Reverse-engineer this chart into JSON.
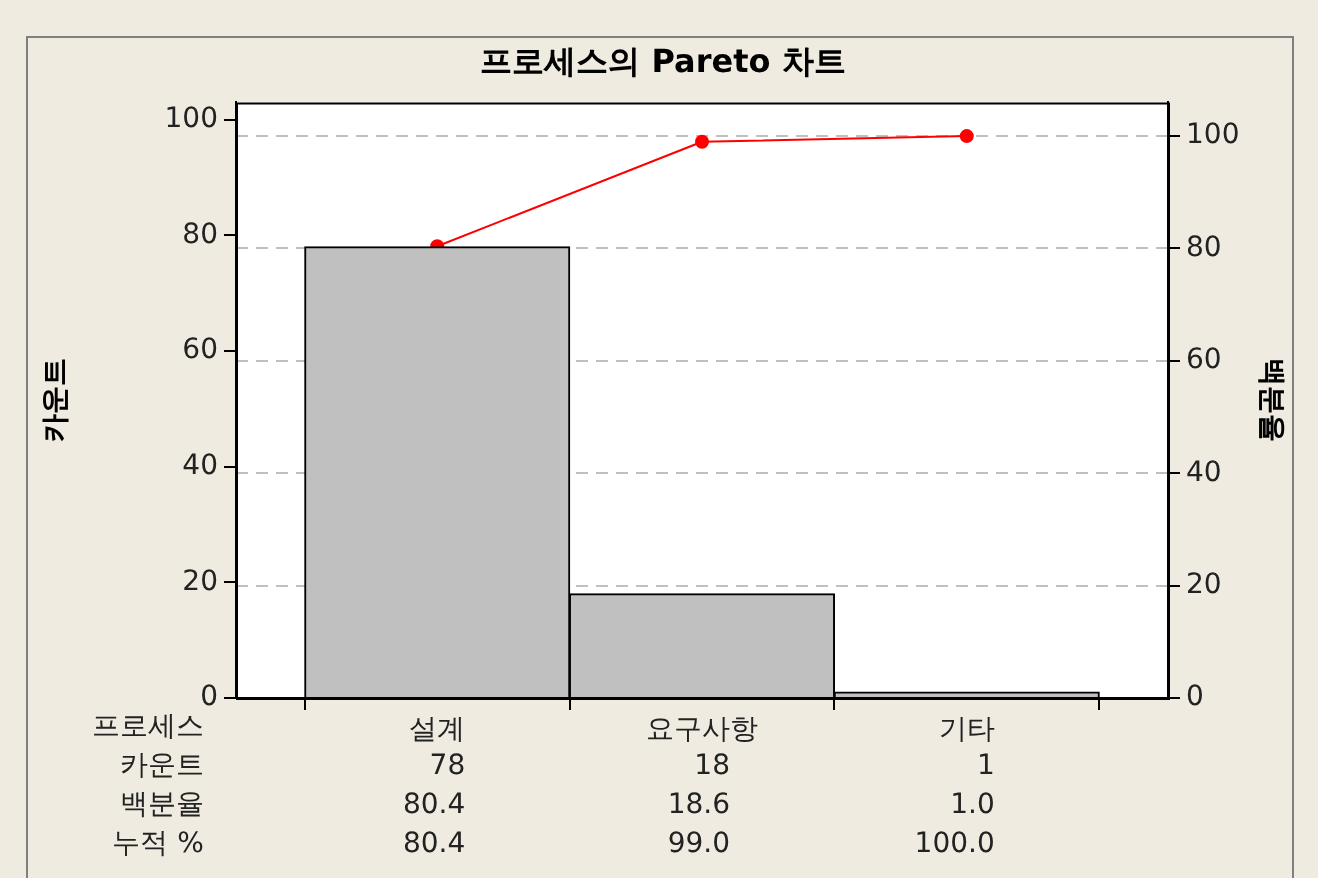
{
  "chart_data": {
    "type": "bar",
    "title": "프로세스의 Pareto 차트",
    "xlabel": "프로세스",
    "ylabel": "카운트",
    "y2label": "백분율",
    "categories": [
      "설계",
      "요구사항",
      "기타"
    ],
    "series": [
      {
        "color": "#c0c0c0",
        "values": [
          78,
          18,
          1
        ]
      },
      {
        "type": "line",
        "axis": "y2",
        "color": "#ff0000",
        "values": [
          80.4,
          99.0,
          100.0
        ],
        "value_labels": [
          "80.4",
          "99.0",
          "100.0"
        ]
      }
    ],
    "annotations": [
      "카운트",
      "백분율",
      "80.4",
      "18.6",
      "1.0",
      "누적 %"
    ],
    "data_labels": true,
    "ylim": [
      0,
      103
    ],
    "yticks": [
      0,
      20,
      40,
      60,
      80,
      100
    ],
    "y2lim": [
      0,
      106
    ],
    "y2ticks": [
      0,
      20,
      40,
      60,
      80,
      100
    ],
    "grid": true,
    "legend": false,
    "marker": "circle",
    "line_style": "solid"
  }
}
